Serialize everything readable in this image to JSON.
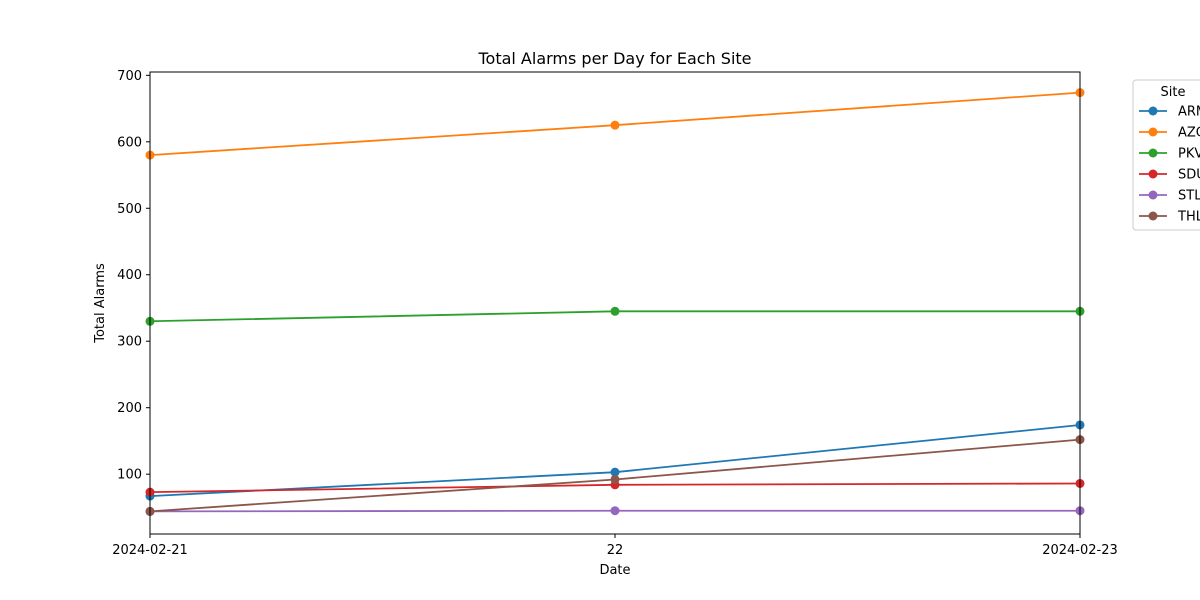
{
  "chart_data": {
    "type": "line",
    "title": "Total Alarms per Day for Each Site",
    "xlabel": "Date",
    "ylabel": "Total Alarms",
    "x": [
      "2024-02-21",
      "2024-02-22",
      "2024-02-23"
    ],
    "x_tick_labels": [
      "2024-02-21",
      "22",
      "2024-02-23"
    ],
    "ylim": [
      10,
      705
    ],
    "y_ticks": [
      100,
      200,
      300,
      400,
      500,
      600,
      700
    ],
    "grid": false,
    "legend": {
      "title": "Site",
      "placement": "outside-top-right"
    },
    "series": [
      {
        "name": "ARM",
        "values": [
          67,
          103,
          174
        ],
        "color": "#1f77b4"
      },
      {
        "name": "AZO",
        "values": [
          580,
          625,
          674
        ],
        "color": "#ff7f0e"
      },
      {
        "name": "PKV",
        "values": [
          330,
          345,
          345
        ],
        "color": "#2ca02c"
      },
      {
        "name": "SDU",
        "values": [
          73,
          84,
          86
        ],
        "color": "#d62728"
      },
      {
        "name": "STL",
        "values": [
          44,
          45,
          45
        ],
        "color": "#9467bd"
      },
      {
        "name": "THL",
        "values": [
          44,
          92,
          152
        ],
        "color": "#8c564b"
      }
    ]
  }
}
